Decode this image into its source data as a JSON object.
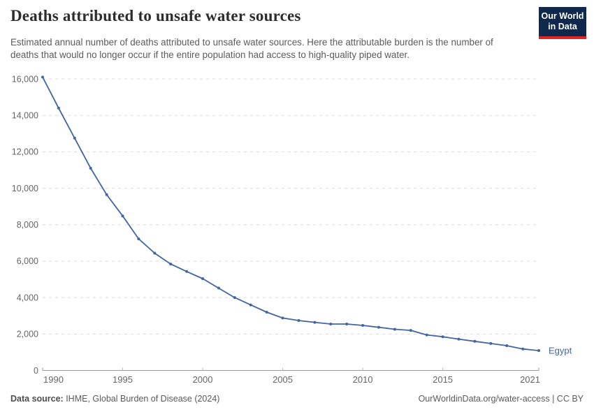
{
  "header": {
    "title": "Deaths attributed to unsafe water sources",
    "subtitle": "Estimated annual number of deaths attributed to unsafe water sources. Here the attributable burden is the number of deaths that would no longer occur if the entire population had access to high-quality piped water.",
    "logo": {
      "line1": "Our World",
      "line2": "in Data",
      "bg_color": "#0f284c",
      "accent_color": "#e02621"
    }
  },
  "chart_data": {
    "type": "line",
    "title": "Deaths attributed to unsafe water sources",
    "xlabel": "",
    "ylabel": "",
    "x": [
      1990,
      1991,
      1992,
      1993,
      1994,
      1995,
      1996,
      1997,
      1998,
      1999,
      2000,
      2001,
      2002,
      2003,
      2004,
      2005,
      2006,
      2007,
      2008,
      2009,
      2010,
      2011,
      2012,
      2013,
      2014,
      2015,
      2016,
      2017,
      2018,
      2019,
      2020,
      2021
    ],
    "series": [
      {
        "name": "Egypt",
        "color": "#4165a5",
        "values": [
          16100,
          14400,
          12750,
          11100,
          9650,
          8480,
          7220,
          6440,
          5840,
          5430,
          5040,
          4520,
          4000,
          3600,
          3200,
          2880,
          2740,
          2640,
          2550,
          2550,
          2470,
          2370,
          2260,
          2200,
          1950,
          1850,
          1720,
          1600,
          1480,
          1360,
          1180,
          1090
        ]
      }
    ],
    "xlim": [
      1990,
      2021
    ],
    "ylim": [
      0,
      16000
    ],
    "xticks": [
      1990,
      1995,
      2000,
      2005,
      2010,
      2015,
      2021
    ],
    "yticks": [
      0,
      2000,
      4000,
      6000,
      8000,
      10000,
      12000,
      14000,
      16000
    ],
    "grid": "horizontal-dashed",
    "grid_color": "#dbdbdb",
    "axis_color": "#999999",
    "tick_label_color": "#666666",
    "legend_position": "end-of-line-label"
  },
  "footer": {
    "source_label": "Data source:",
    "source_text": " IHME, Global Burden of Disease (2024)",
    "credit_url": "OurWorldinData.org/water-access",
    "credit_separator": " | ",
    "credit_license": "CC BY"
  }
}
